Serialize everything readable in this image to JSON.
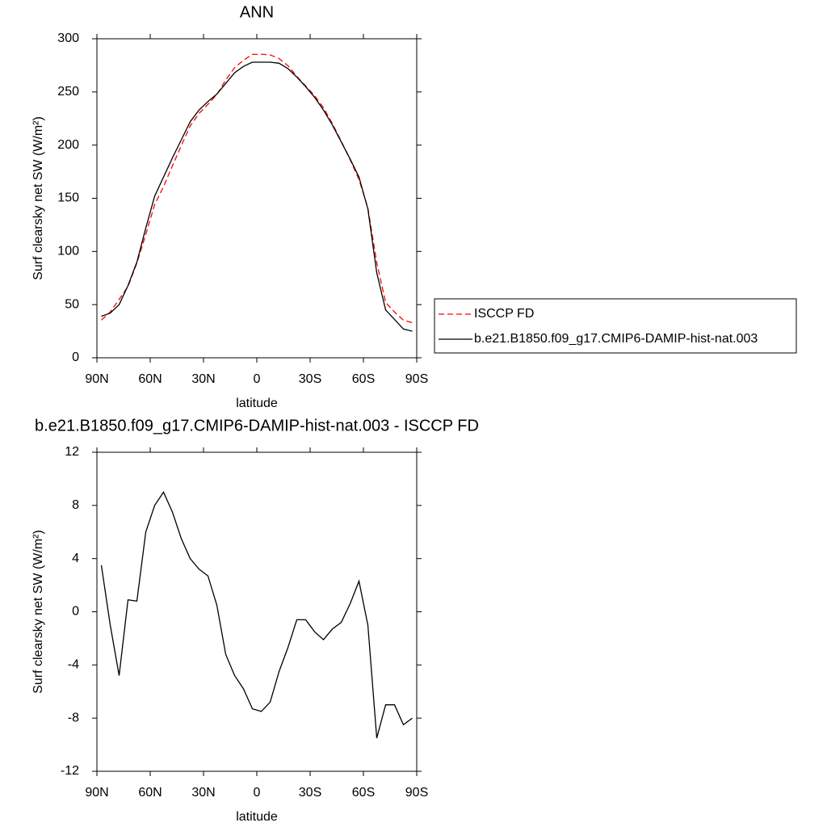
{
  "chart_data": [
    {
      "type": "line",
      "title": "ANN",
      "xlabel": "latitude",
      "ylabel": "Surf clearsky net SW (W/m²)",
      "x": [
        87.5,
        82.5,
        77.5,
        72.5,
        67.5,
        62.5,
        57.5,
        52.5,
        47.5,
        42.5,
        37.5,
        32.5,
        27.5,
        22.5,
        17.5,
        12.5,
        7.5,
        2.5,
        -2.5,
        -7.5,
        -12.5,
        -17.5,
        -22.5,
        -27.5,
        -32.5,
        -37.5,
        -42.5,
        -47.5,
        -52.5,
        -57.5,
        -62.5,
        -67.5,
        -72.5,
        -77.5,
        -82.5,
        -87.5
      ],
      "series": [
        {
          "name": "ISCCP FD",
          "color": "#ff0000",
          "dash": true,
          "values": [
            35.5,
            43,
            54.8,
            67.1,
            89.2,
            116,
            144,
            161,
            180.5,
            199.5,
            218,
            229.8,
            238.3,
            247.5,
            261.2,
            272.8,
            279.8,
            285.3,
            285.5,
            284.8,
            281.5,
            274.7,
            264.6,
            255.6,
            246.5,
            235.1,
            220.3,
            203.8,
            186.4,
            167.7,
            141,
            89.5,
            52,
            43,
            35.5,
            33
          ]
        },
        {
          "name": "b.e21.B1850.f09_g17.CMIP6-DAMIP-hist-nat.003",
          "color": "#000000",
          "dash": false,
          "values": [
            39,
            42,
            50,
            68,
            90,
            122,
            152,
            170,
            188,
            205,
            222,
            233,
            241,
            248,
            258,
            268,
            274,
            278,
            278,
            278,
            277,
            272,
            264,
            255,
            245,
            233,
            219,
            203,
            187,
            170,
            140,
            80,
            45,
            36,
            27,
            25
          ]
        }
      ],
      "xlim": [
        90,
        -90
      ],
      "xticks": [
        {
          "value": 90,
          "label": "90N"
        },
        {
          "value": 60,
          "label": "60N"
        },
        {
          "value": 30,
          "label": "30N"
        },
        0,
        {
          "value": -30,
          "label": "30S"
        },
        {
          "value": -60,
          "label": "60S"
        },
        {
          "value": -90,
          "label": "90S"
        }
      ],
      "ylim": [
        0,
        300
      ],
      "yticks": [
        0,
        50,
        100,
        150,
        200,
        250,
        300
      ],
      "legend": "right"
    },
    {
      "type": "line",
      "title": "b.e21.B1850.f09_g17.CMIP6-DAMIP-hist-nat.003 - ISCCP FD",
      "xlabel": "latitude",
      "ylabel": "Surf clearsky net SW (W/m²)",
      "x": [
        87.5,
        82.5,
        77.5,
        72.5,
        67.5,
        62.5,
        57.5,
        52.5,
        47.5,
        42.5,
        37.5,
        32.5,
        27.5,
        22.5,
        17.5,
        12.5,
        7.5,
        2.5,
        -2.5,
        -7.5,
        -12.5,
        -17.5,
        -22.5,
        -27.5,
        -32.5,
        -37.5,
        -42.5,
        -47.5,
        -52.5,
        -57.5,
        -62.5,
        -67.5,
        -72.5,
        -77.5,
        -82.5,
        -87.5
      ],
      "values": [
        3.5,
        -1,
        -4.8,
        0.9,
        0.8,
        6,
        8,
        9,
        7.5,
        5.5,
        4,
        3.2,
        2.7,
        0.5,
        -3.2,
        -4.8,
        -5.8,
        -7.3,
        -7.5,
        -6.8,
        -4.5,
        -2.7,
        -0.6,
        -0.6,
        -1.5,
        -2.1,
        -1.3,
        -0.8,
        0.6,
        2.3,
        -1,
        -9.5,
        -7,
        -7,
        -8.5,
        -8
      ],
      "color": "#000000",
      "xlim": [
        90,
        -90
      ],
      "xticks": [
        {
          "value": 90,
          "label": "90N"
        },
        {
          "value": 60,
          "label": "60N"
        },
        {
          "value": 30,
          "label": "30N"
        },
        0,
        {
          "value": -30,
          "label": "30S"
        },
        {
          "value": -60,
          "label": "60S"
        },
        {
          "value": -90,
          "label": "90S"
        }
      ],
      "ylim": [
        -12,
        12
      ],
      "yticks": [
        -12,
        -8,
        -4,
        0,
        4,
        8,
        12
      ]
    }
  ]
}
